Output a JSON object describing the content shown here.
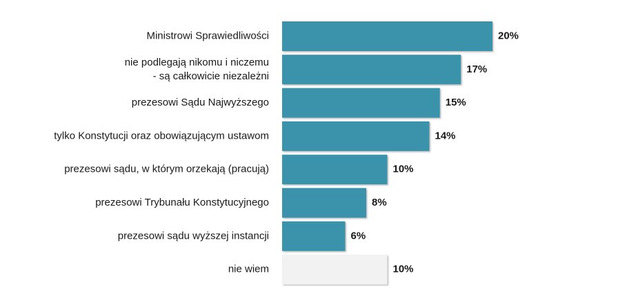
{
  "chart_data": {
    "type": "bar",
    "orientation": "horizontal",
    "categories": [
      "Ministrowi Sprawiedliwości",
      "nie podlegają nikomu i niczemu\n- są całkowicie niezależni",
      "prezesowi Sądu Najwyższego",
      "tylko Konstytucji oraz obowiązującym ustawom",
      "prezesowi sądu, w którym orzekają (pracują)",
      "prezesowi Trybunału Konstytucyjnego",
      "prezesowi sądu wyższej instancji",
      "nie wiem"
    ],
    "values": [
      20,
      17,
      15,
      14,
      10,
      8,
      6,
      10
    ],
    "value_labels": [
      "20%",
      "17%",
      "15%",
      "14%",
      "10%",
      "8%",
      "6%",
      "10%"
    ],
    "unit": "%",
    "xlim": [
      0,
      23
    ],
    "colors": {
      "bar": "#3a93ab",
      "bar_dont_know": "#f2f2f2",
      "text": "#1a1a1a"
    },
    "bar_color_keys": [
      "bar",
      "bar",
      "bar",
      "bar",
      "bar",
      "bar",
      "bar",
      "bar_dont_know"
    ],
    "grid": false,
    "legend": "none"
  }
}
